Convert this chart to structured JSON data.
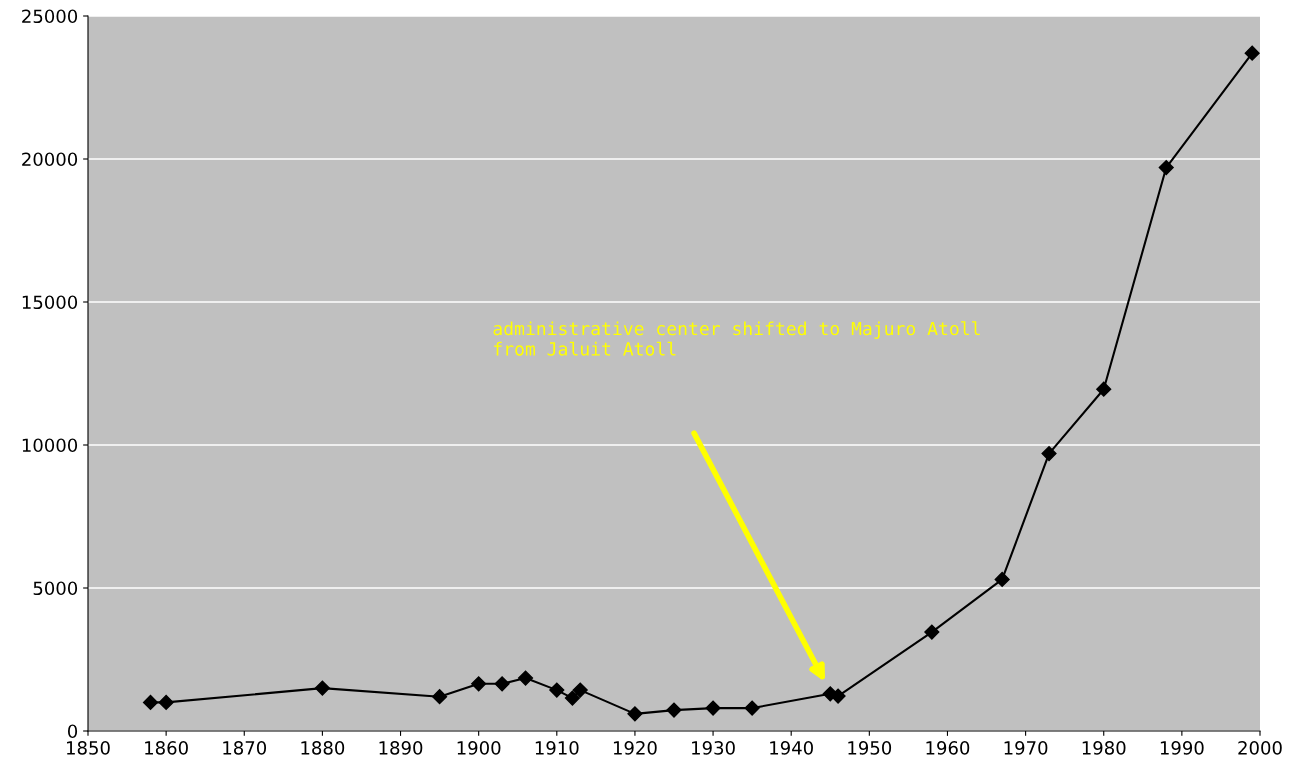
{
  "chart_data": {
    "type": "line",
    "x": [
      1858,
      1860,
      1880,
      1895,
      1900,
      1903,
      1906,
      1910,
      1912,
      1913,
      1920,
      1925,
      1930,
      1935,
      1945,
      1946,
      1958,
      1967,
      1973,
      1980,
      1988,
      1999
    ],
    "series": [
      {
        "color": "#000000",
        "values": [
          1000,
          1000,
          1500,
          1200,
          1650,
          1650,
          1850,
          1430,
          1150,
          1430,
          600,
          730,
          800,
          800,
          1300,
          1220,
          3460,
          5300,
          9700,
          11950,
          19700,
          23700
        ]
      }
    ],
    "xlim": [
      1850,
      2000
    ],
    "xticks": [
      1850,
      1860,
      1870,
      1880,
      1890,
      1900,
      1910,
      1920,
      1930,
      1940,
      1950,
      1960,
      1970,
      1980,
      1990,
      2000
    ],
    "ylim": [
      0,
      25000
    ],
    "yticks": [
      0,
      5000,
      10000,
      15000,
      20000,
      25000
    ],
    "grid": "y",
    "marker": "diamond",
    "line_style": "solid",
    "legend": false,
    "annotations": [
      "administrative center shifted to Majuro Atoll\nfrom Jaluit Atoll"
    ]
  }
}
